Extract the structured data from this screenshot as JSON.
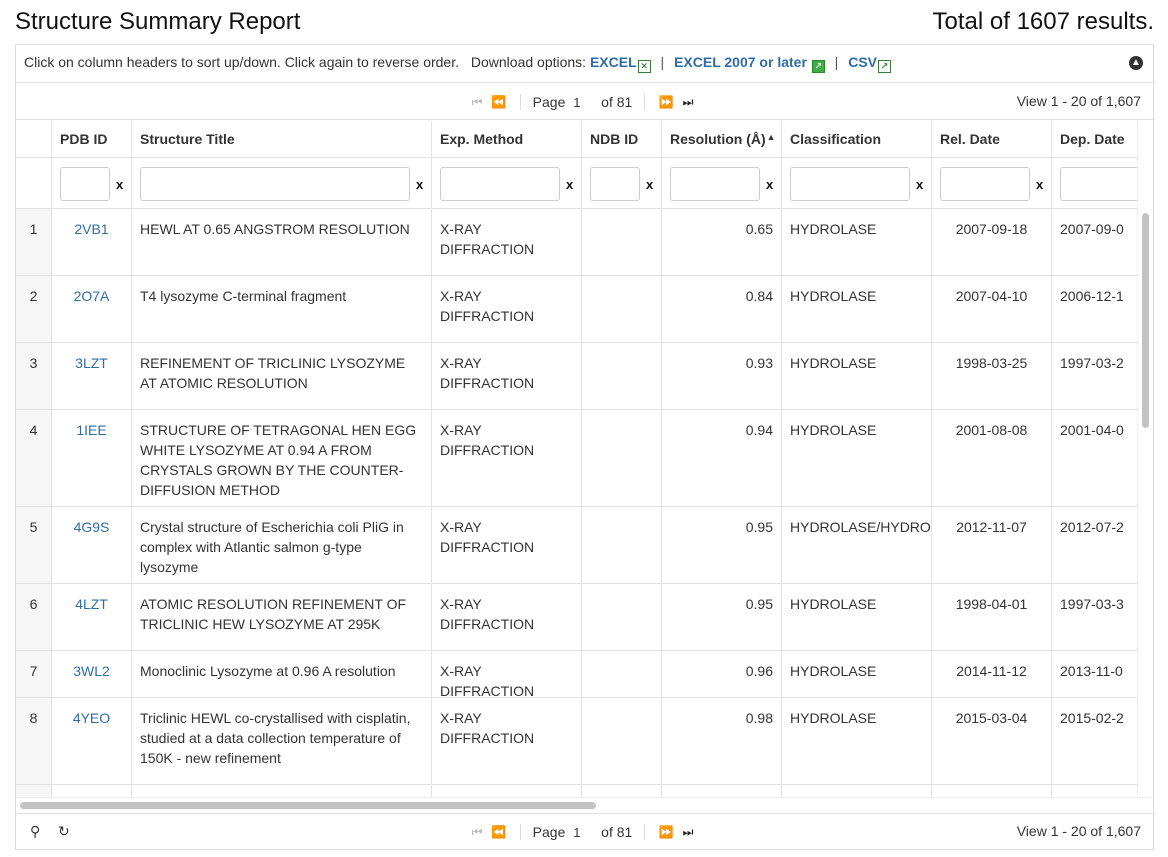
{
  "header": {
    "title": "Structure Summary Report",
    "total": "Total of 1607 results."
  },
  "infobar": {
    "instructions": "Click on column headers to sort up/down. Click again to reverse order.",
    "download_label": "Download options:",
    "downloads": [
      "EXCEL",
      "EXCEL 2007 or later",
      "CSV"
    ],
    "separator": "|"
  },
  "pager": {
    "page_label": "Page",
    "page_value": "1",
    "of_label": "of 81",
    "view_text": "View 1 - 20 of 1,607"
  },
  "columns": [
    {
      "label": ""
    },
    {
      "label": "PDB ID"
    },
    {
      "label": "Structure Title"
    },
    {
      "label": "Exp. Method"
    },
    {
      "label": "NDB ID"
    },
    {
      "label": "Resolution (Å)"
    },
    {
      "label": "Classification"
    },
    {
      "label": "Rel. Date"
    },
    {
      "label": "Dep. Date"
    }
  ],
  "filter": {
    "clear_label": "x"
  },
  "rows": [
    {
      "num": "1",
      "pdb": "2VB1",
      "title": "HEWL AT 0.65 ANGSTROM RESOLUTION",
      "method": "X-RAY DIFFRACTION",
      "ndb": "",
      "resolution": "0.65",
      "classification": "HYDROLASE",
      "rel_date": "2007-09-18",
      "dep_date": "2007-09-0"
    },
    {
      "num": "2",
      "pdb": "2O7A",
      "title": "T4 lysozyme C-terminal fragment",
      "method": "X-RAY DIFFRACTION",
      "ndb": "",
      "resolution": "0.84",
      "classification": "HYDROLASE",
      "rel_date": "2007-04-10",
      "dep_date": "2006-12-1"
    },
    {
      "num": "3",
      "pdb": "3LZT",
      "title": "REFINEMENT OF TRICLINIC LYSOZYME AT ATOMIC RESOLUTION",
      "method": "X-RAY DIFFRACTION",
      "ndb": "",
      "resolution": "0.93",
      "classification": "HYDROLASE",
      "rel_date": "1998-03-25",
      "dep_date": "1997-03-2"
    },
    {
      "num": "4",
      "pdb": "1IEE",
      "title": "STRUCTURE OF TETRAGONAL HEN EGG WHITE LYSOZYME AT 0.94 A FROM CRYSTALS GROWN BY THE COUNTER-DIFFUSION METHOD",
      "method": "X-RAY DIFFRACTION",
      "ndb": "",
      "resolution": "0.94",
      "classification": "HYDROLASE",
      "rel_date": "2001-08-08",
      "dep_date": "2001-04-0"
    },
    {
      "num": "5",
      "pdb": "4G9S",
      "title": "Crystal structure of Escherichia coli PliG in complex with Atlantic salmon g-type lysozyme",
      "method": "X-RAY DIFFRACTION",
      "ndb": "",
      "resolution": "0.95",
      "classification": "HYDROLASE/HYDROL",
      "rel_date": "2012-11-07",
      "dep_date": "2012-07-2"
    },
    {
      "num": "6",
      "pdb": "4LZT",
      "title": "ATOMIC RESOLUTION REFINEMENT OF TRICLINIC HEW LYSOZYME AT 295K",
      "method": "X-RAY DIFFRACTION",
      "ndb": "",
      "resolution": "0.95",
      "classification": "HYDROLASE",
      "rel_date": "1998-04-01",
      "dep_date": "1997-03-3"
    },
    {
      "num": "7",
      "pdb": "3WL2",
      "title": "Monoclinic Lysozyme at 0.96 A resolution",
      "method": "X-RAY DIFFRACTION",
      "ndb": "",
      "resolution": "0.96",
      "classification": "HYDROLASE",
      "rel_date": "2014-11-12",
      "dep_date": "2013-11-0"
    },
    {
      "num": "8",
      "pdb": "4YEO",
      "title": "Triclinic HEWL co-crystallised with cisplatin, studied at a data collection temperature of 150K - new refinement",
      "method": "X-RAY DIFFRACTION",
      "ndb": "",
      "resolution": "0.98",
      "classification": "HYDROLASE",
      "rel_date": "2015-03-04",
      "dep_date": "2015-02-2"
    }
  ],
  "colors": {
    "link": "#2e6da4",
    "border": "#e2e2e2",
    "rownum_bg": "#f6f6f6"
  }
}
